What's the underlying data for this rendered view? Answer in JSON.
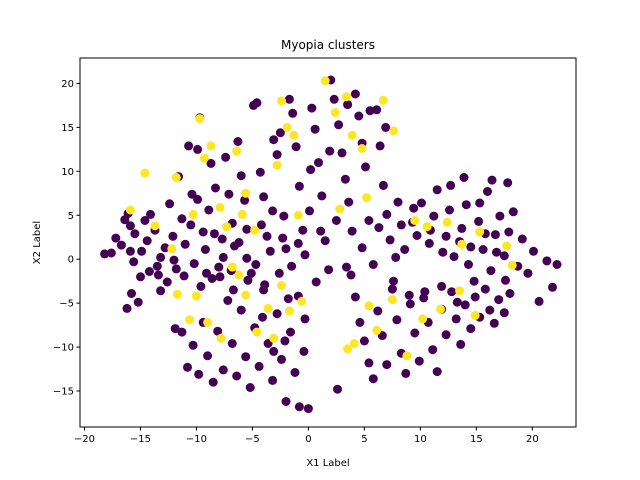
{
  "chart_data": {
    "type": "scatter",
    "title": "Myopia clusters",
    "xlabel": "X1 Label",
    "ylabel": "X2 Label",
    "xlim": [
      -20.4,
      23.9
    ],
    "ylim": [
      -19.1,
      22.9
    ],
    "xticks": [
      -20,
      -15,
      -10,
      -5,
      0,
      5,
      10,
      15,
      20
    ],
    "yticks": [
      -15,
      -10,
      -5,
      0,
      5,
      10,
      15,
      20
    ],
    "grid": false,
    "colors": {
      "class_0": "#440154",
      "class_1": "#fde725"
    },
    "series": [
      {
        "class": 0,
        "points": [
          [
            -18.2,
            0.6
          ],
          [
            -17.6,
            0.7
          ],
          [
            -17.2,
            2.4
          ],
          [
            -16.7,
            1.6
          ],
          [
            -16.4,
            4.5
          ],
          [
            -16.1,
            5.2
          ],
          [
            -15.9,
            3.8
          ],
          [
            -15.6,
            -0.3
          ],
          [
            -16.2,
            -5.6
          ],
          [
            -15.8,
            -3.9
          ],
          [
            -15.2,
            -4.9
          ],
          [
            -15.5,
            2.9
          ],
          [
            -14.9,
            0.9
          ],
          [
            -14.6,
            4.4
          ],
          [
            -14.4,
            2.1
          ],
          [
            -14.1,
            5.1
          ],
          [
            -13.7,
            3.3
          ],
          [
            -13.5,
            -0.8
          ],
          [
            -13.2,
            -3.6
          ],
          [
            -12.8,
            1.3
          ],
          [
            -12.4,
            6.3
          ],
          [
            -12.1,
            2.6
          ],
          [
            -11.8,
            -1.1
          ],
          [
            -11.6,
            9.4
          ],
          [
            -11.3,
            4.6
          ],
          [
            -11.0,
            1.7
          ],
          [
            -10.7,
            12.9
          ],
          [
            -10.4,
            7.4
          ],
          [
            -10.2,
            -0.5
          ],
          [
            -9.9,
            12.5
          ],
          [
            -9.7,
            16.1
          ],
          [
            -9.4,
            3.1
          ],
          [
            -9.2,
            1.1
          ],
          [
            -8.9,
            5.6
          ],
          [
            -8.6,
            -2.2
          ],
          [
            -8.3,
            8.1
          ],
          [
            -8.0,
            -0.9
          ],
          [
            -7.7,
            2.3
          ],
          [
            -7.4,
            11.6
          ],
          [
            -7.1,
            7.4
          ],
          [
            -6.8,
            4.1
          ],
          [
            -6.6,
            1.5
          ],
          [
            -6.3,
            13.4
          ],
          [
            -6.0,
            9.5
          ],
          [
            -5.7,
            6.7
          ],
          [
            -5.5,
            3.4
          ],
          [
            -5.1,
            -1.6
          ],
          [
            -4.9,
            17.5
          ],
          [
            -4.6,
            17.8
          ],
          [
            -4.3,
            9.9
          ],
          [
            -4.0,
            7.1
          ],
          [
            -3.7,
            2.6
          ],
          [
            -3.4,
            0.9
          ],
          [
            -3.1,
            13.6
          ],
          [
            -2.8,
            11.9
          ],
          [
            -2.5,
            14.4
          ],
          [
            -2.2,
            4.9
          ],
          [
            -2.0,
            1.2
          ],
          [
            -1.7,
            18.2
          ],
          [
            -1.4,
            16.6
          ],
          [
            -1.1,
            12.8
          ],
          [
            -0.8,
            8.3
          ],
          [
            -0.5,
            3.3
          ],
          [
            -0.3,
            0.5
          ],
          [
            0.1,
            5.5
          ],
          [
            0.3,
            17.2
          ],
          [
            0.6,
            14.8
          ],
          [
            0.9,
            11.0
          ],
          [
            1.2,
            7.2
          ],
          [
            1.5,
            2.1
          ],
          [
            1.8,
            -1.2
          ],
          [
            2.0,
            20.4
          ],
          [
            2.3,
            18.2
          ],
          [
            2.7,
            15.3
          ],
          [
            3.0,
            12.1
          ],
          [
            3.3,
            9.1
          ],
          [
            3.6,
            6.5
          ],
          [
            3.9,
            3.2
          ],
          [
            4.2,
            18.8
          ],
          [
            4.5,
            16.3
          ],
          [
            4.8,
            13.2
          ],
          [
            5.1,
            10.5
          ],
          [
            5.4,
            4.4
          ],
          [
            5.8,
            -0.6
          ],
          [
            6.1,
            17.0
          ],
          [
            6.4,
            12.9
          ],
          [
            6.7,
            8.4
          ],
          [
            7.0,
            5.1
          ],
          [
            7.3,
            2.2
          ],
          [
            7.6,
            -2.5
          ],
          [
            8.0,
            6.5
          ],
          [
            8.3,
            3.9
          ],
          [
            8.6,
            1.1
          ],
          [
            9.0,
            -4.1
          ],
          [
            9.3,
            4.2
          ],
          [
            9.7,
            2.7
          ],
          [
            10.1,
            6.4
          ],
          [
            10.4,
            -3.7
          ],
          [
            10.8,
            1.8
          ],
          [
            11.2,
            4.9
          ],
          [
            11.5,
            7.9
          ],
          [
            11.9,
            -3.1
          ],
          [
            12.3,
            2.6
          ],
          [
            12.6,
            5.6
          ],
          [
            13.0,
            0.3
          ],
          [
            13.3,
            -4.9
          ],
          [
            13.7,
            3.5
          ],
          [
            14.1,
            6.2
          ],
          [
            14.5,
            1.4
          ],
          [
            14.8,
            -2.5
          ],
          [
            15.2,
            4.3
          ],
          [
            15.6,
            1.1
          ],
          [
            16.0,
            7.7
          ],
          [
            16.3,
            -1.3
          ],
          [
            16.7,
            2.8
          ],
          [
            17.1,
            4.9
          ],
          [
            17.5,
            0.4
          ],
          [
            17.9,
            3.1
          ],
          [
            18.3,
            5.4
          ],
          [
            18.7,
            -0.8
          ],
          [
            19.1,
            2.3
          ],
          [
            19.6,
            -1.6
          ],
          [
            20.1,
            0.9
          ],
          [
            20.6,
            -4.8
          ],
          [
            21.3,
            -0.2
          ],
          [
            21.8,
            -3.2
          ],
          [
            22.2,
            -0.6
          ],
          [
            17.8,
            8.7
          ],
          [
            16.4,
            9.0
          ],
          [
            15.3,
            6.4
          ],
          [
            13.9,
            9.3
          ],
          [
            12.7,
            8.4
          ],
          [
            -11.9,
            -7.9
          ],
          [
            -11.3,
            -8.3
          ],
          [
            -10.8,
            -12.3
          ],
          [
            -10.3,
            -9.8
          ],
          [
            -9.8,
            -13.1
          ],
          [
            -9.4,
            -7.2
          ],
          [
            -9.0,
            -11.0
          ],
          [
            -8.5,
            -14.0
          ],
          [
            -8.1,
            -8.2
          ],
          [
            -7.6,
            -12.6
          ],
          [
            -7.2,
            -4.7
          ],
          [
            -6.8,
            -9.6
          ],
          [
            -6.4,
            -13.3
          ],
          [
            -6.0,
            -5.8
          ],
          [
            -5.6,
            -11.1
          ],
          [
            -5.2,
            -14.6
          ],
          [
            -4.8,
            -7.8
          ],
          [
            -4.4,
            -12.2
          ],
          [
            -4.0,
            -3.5
          ],
          [
            -3.6,
            -9.6
          ],
          [
            -3.2,
            -13.8
          ],
          [
            -2.8,
            -6.2
          ],
          [
            -2.4,
            -11.4
          ],
          [
            -2.0,
            -16.2
          ],
          [
            -1.6,
            -8.3
          ],
          [
            -1.2,
            -12.9
          ],
          [
            -0.8,
            -16.8
          ],
          [
            -0.4,
            -10.5
          ],
          [
            0.0,
            -17.0
          ],
          [
            -0.3,
            -6.8
          ],
          [
            -1.8,
            -4.5
          ],
          [
            -3.9,
            -2.9
          ],
          [
            -5.4,
            -2.4
          ],
          [
            -7.9,
            -2.0
          ],
          [
            -9.6,
            -3.1
          ],
          [
            -2.6,
            -1.6
          ],
          [
            2.6,
            -14.8
          ],
          [
            3.8,
            -1.8
          ],
          [
            4.2,
            -4.3
          ],
          [
            4.6,
            -7.2
          ],
          [
            5.0,
            -9.3
          ],
          [
            5.4,
            -11.8
          ],
          [
            5.8,
            -13.6
          ],
          [
            6.2,
            -5.9
          ],
          [
            6.6,
            -8.7
          ],
          [
            7.0,
            -12.0
          ],
          [
            7.5,
            -3.4
          ],
          [
            7.9,
            -6.9
          ],
          [
            8.3,
            -10.7
          ],
          [
            8.7,
            -13.0
          ],
          [
            9.1,
            -5.1
          ],
          [
            9.5,
            -8.4
          ],
          [
            9.9,
            -11.6
          ],
          [
            10.3,
            -4.4
          ],
          [
            10.7,
            -7.2
          ],
          [
            11.1,
            -10.3
          ],
          [
            11.5,
            -12.8
          ],
          [
            11.9,
            -5.7
          ],
          [
            12.3,
            -8.6
          ],
          [
            12.8,
            -3.7
          ],
          [
            13.2,
            -6.8
          ],
          [
            13.6,
            -9.7
          ],
          [
            14.0,
            -5.2
          ],
          [
            14.5,
            -7.9
          ],
          [
            14.9,
            -4.3
          ],
          [
            15.3,
            -6.6
          ],
          [
            15.8,
            -3.4
          ],
          [
            16.2,
            -5.8
          ],
          [
            16.6,
            -7.3
          ],
          [
            17.0,
            -4.6
          ],
          [
            17.5,
            -6.1
          ],
          [
            18.0,
            -3.9
          ],
          [
            -15.9,
            0.9
          ],
          [
            -15.0,
            -2.0
          ],
          [
            -14.2,
            -1.4
          ],
          [
            -13.2,
            0.2
          ],
          [
            -12.6,
            -2.6
          ],
          [
            -12.0,
            -0.1
          ],
          [
            -11.1,
            -1.9
          ],
          [
            -10.5,
            3.9
          ],
          [
            -9.9,
            6.8
          ],
          [
            -9.1,
            -1.6
          ],
          [
            -8.4,
            2.9
          ],
          [
            -7.6,
            0.2
          ],
          [
            -6.9,
            -1.3
          ],
          [
            -6.2,
            1.9
          ],
          [
            -5.5,
            0.1
          ],
          [
            -4.7,
            -0.6
          ],
          [
            -4.2,
            3.9
          ],
          [
            -3.2,
            5.5
          ],
          [
            -2.3,
            2.4
          ],
          [
            -1.5,
            -0.8
          ],
          [
            -0.9,
            1.8
          ],
          [
            0.7,
            -2.6
          ],
          [
            1.1,
            3.2
          ],
          [
            2.5,
            4.4
          ],
          [
            3.4,
            -0.9
          ],
          [
            4.8,
            1.3
          ],
          [
            6.3,
            3.6
          ],
          [
            7.8,
            0.2
          ],
          [
            9.4,
            5.8
          ],
          [
            10.9,
            3.3
          ],
          [
            12.0,
            0.8
          ],
          [
            13.5,
            2.0
          ],
          [
            14.3,
            -0.6
          ],
          [
            15.8,
            2.9
          ],
          [
            16.8,
            0.8
          ],
          [
            17.6,
            -2.4
          ],
          [
            -13.4,
            -1.8
          ],
          [
            -8.7,
            10.9
          ],
          [
            -6.7,
            -3.5
          ],
          [
            -4.1,
            -6.6
          ],
          [
            -3.1,
            -10.5
          ],
          [
            -2.1,
            -9.3
          ],
          [
            -0.9,
            -4.2
          ],
          [
            6.9,
            15.0
          ],
          [
            5.5,
            16.9
          ],
          [
            3.5,
            17.6
          ],
          [
            1.9,
            12.3
          ],
          [
            0.2,
            10.2
          ]
        ]
      },
      {
        "class": 1,
        "points": [
          [
            -15.9,
            5.6
          ],
          [
            -14.6,
            9.8
          ],
          [
            -11.8,
            9.3
          ],
          [
            -10.3,
            5.1
          ],
          [
            -9.7,
            16.0
          ],
          [
            -9.3,
            11.5
          ],
          [
            -8.7,
            12.9
          ],
          [
            -7.9,
            5.9
          ],
          [
            -7.3,
            3.7
          ],
          [
            -6.4,
            12.3
          ],
          [
            -5.9,
            5.1
          ],
          [
            -5.6,
            7.5
          ],
          [
            -4.8,
            3.3
          ],
          [
            -2.8,
            10.7
          ],
          [
            -2.4,
            18.0
          ],
          [
            -1.9,
            15.0
          ],
          [
            -1.3,
            14.1
          ],
          [
            -0.9,
            5.0
          ],
          [
            1.5,
            20.3
          ],
          [
            2.4,
            16.7
          ],
          [
            3.4,
            18.5
          ],
          [
            3.9,
            14.1
          ],
          [
            4.8,
            12.6
          ],
          [
            5.2,
            7.0
          ],
          [
            6.7,
            18.1
          ],
          [
            7.6,
            14.6
          ],
          [
            9.5,
            4.4
          ],
          [
            10.6,
            3.7
          ],
          [
            12.4,
            4.2
          ],
          [
            13.7,
            1.7
          ],
          [
            15.3,
            3.1
          ],
          [
            17.7,
            1.5
          ],
          [
            18.2,
            -0.7
          ],
          [
            -11.7,
            -4.0
          ],
          [
            -10.0,
            -4.2
          ],
          [
            -9.0,
            -7.2
          ],
          [
            -7.8,
            -9.0
          ],
          [
            -6.2,
            -1.8
          ],
          [
            -5.6,
            -4.1
          ],
          [
            -4.6,
            -8.3
          ],
          [
            -3.6,
            -5.6
          ],
          [
            -3.1,
            -9.0
          ],
          [
            -2.4,
            -3.0
          ],
          [
            -1.7,
            -5.9
          ],
          [
            -0.6,
            -4.8
          ],
          [
            3.5,
            -10.2
          ],
          [
            4.1,
            -9.6
          ],
          [
            5.4,
            -5.3
          ],
          [
            6.1,
            -8.1
          ],
          [
            7.5,
            -4.6
          ],
          [
            8.8,
            -11.0
          ],
          [
            10.2,
            -6.8
          ],
          [
            11.8,
            -5.7
          ],
          [
            13.5,
            -3.6
          ],
          [
            14.9,
            -6.4
          ],
          [
            -10.6,
            -6.9
          ],
          [
            -12.2,
            1.2
          ],
          [
            -13.7,
            3.8
          ],
          [
            -6.8,
            -0.9
          ],
          [
            2.8,
            5.7
          ]
        ]
      }
    ]
  }
}
